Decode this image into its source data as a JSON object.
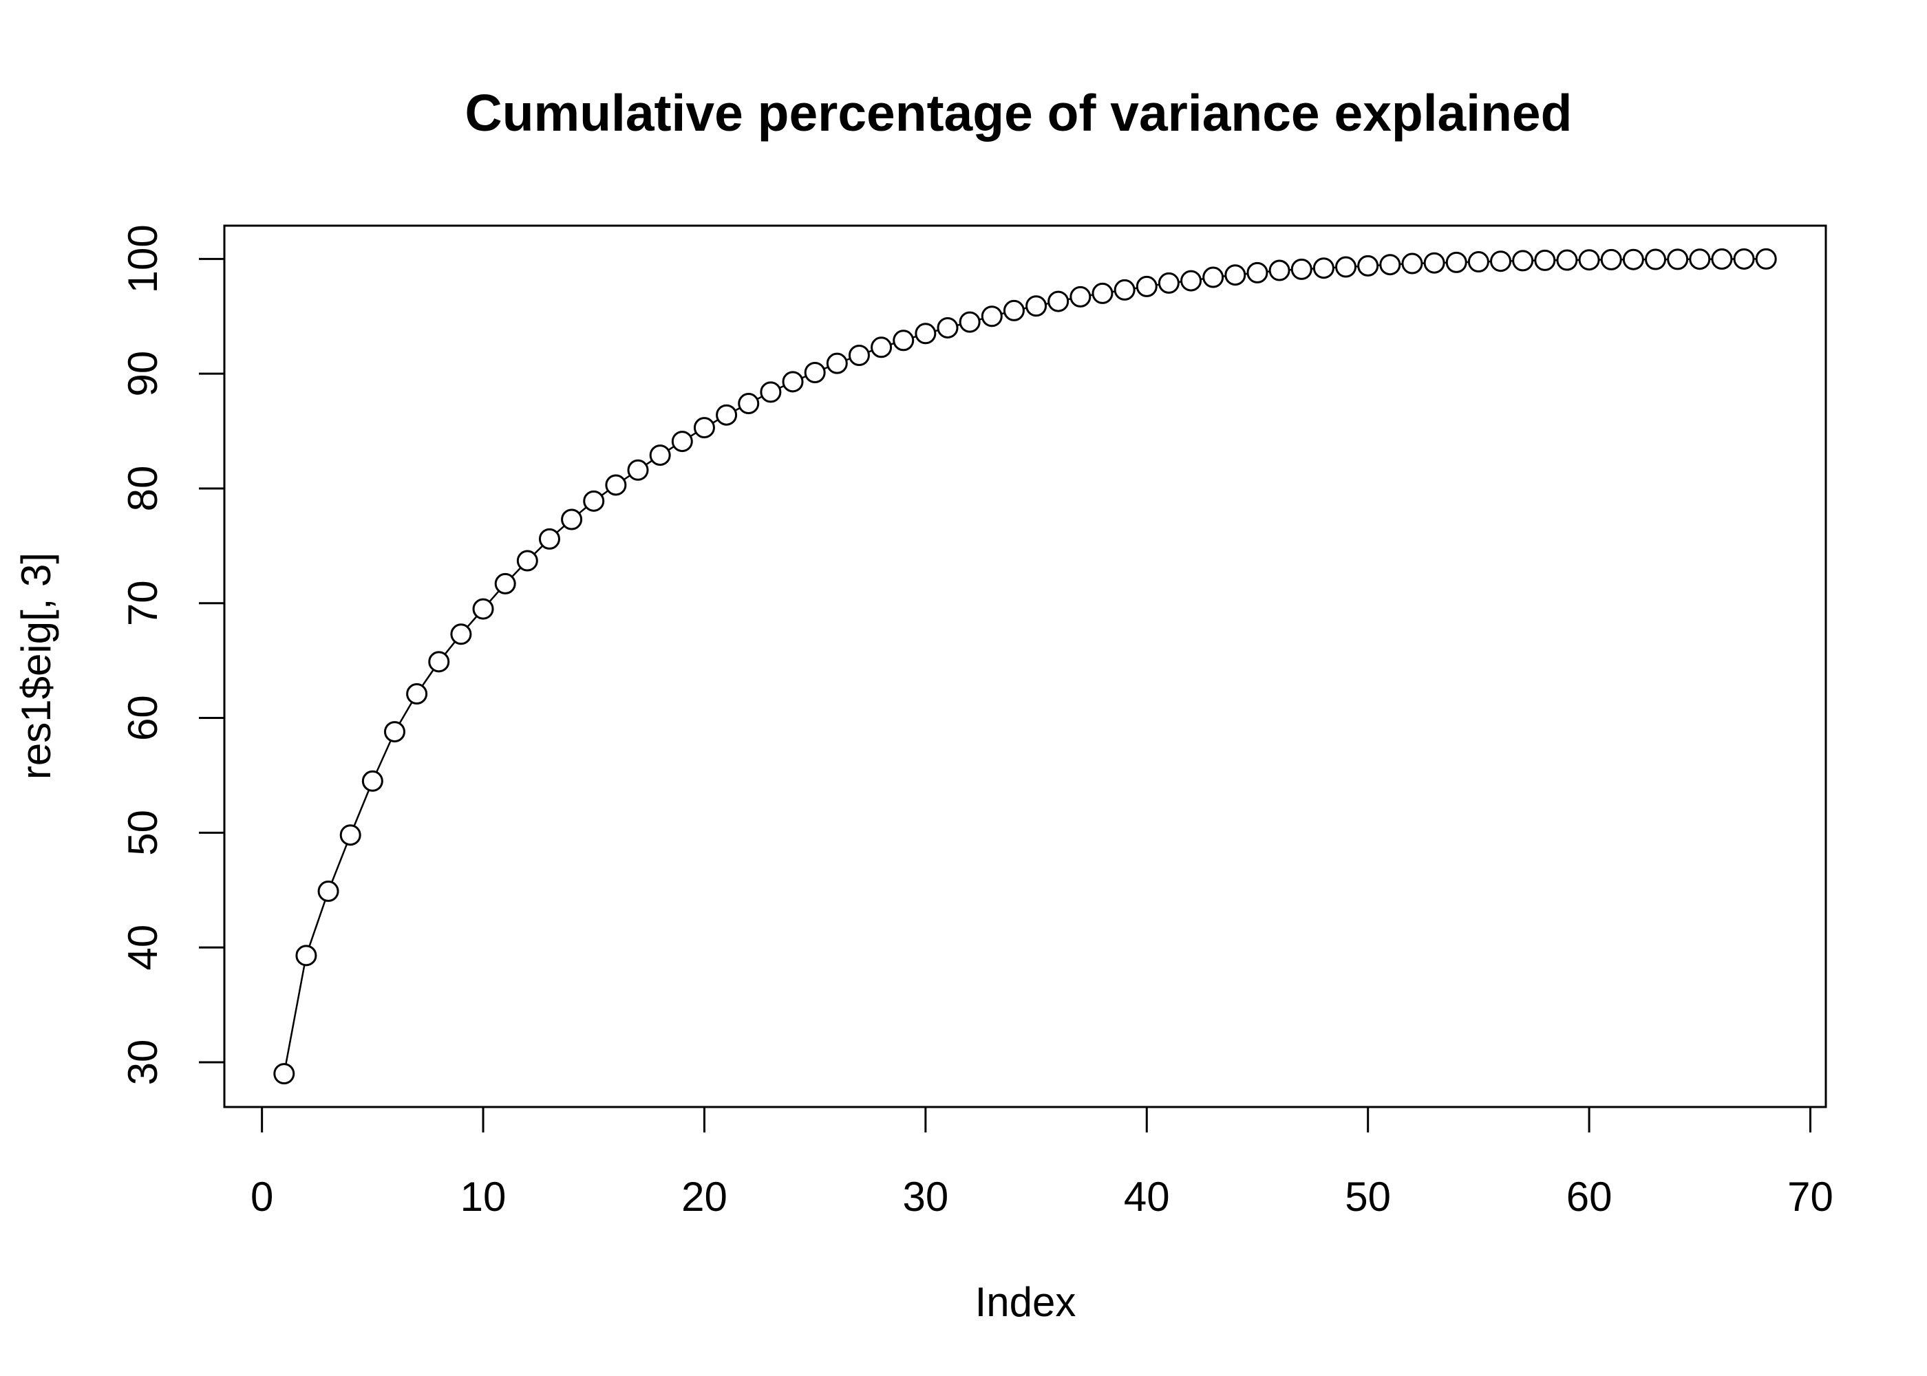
{
  "chart_data": {
    "type": "line",
    "title": "Cumulative percentage of variance explained",
    "xlabel": "Index",
    "ylabel": "res1$eig[, 3]",
    "xlim": [
      -1.7,
      70.7
    ],
    "ylim": [
      26.1,
      102.9
    ],
    "xticks": [
      0,
      10,
      20,
      30,
      40,
      50,
      60,
      70
    ],
    "yticks": [
      30,
      40,
      50,
      60,
      70,
      80,
      90,
      100
    ],
    "marker": "open-circle",
    "grid": false,
    "legend": "none",
    "line_color": "#000000",
    "series": [
      {
        "x": [
          1,
          2,
          3,
          4,
          5,
          6,
          7,
          8,
          9,
          10,
          11,
          12,
          13,
          14,
          15,
          16,
          17,
          18,
          19,
          20,
          21,
          22,
          23,
          24,
          25,
          26,
          27,
          28,
          29,
          30,
          31,
          32,
          33,
          34,
          35,
          36,
          37,
          38,
          39,
          40,
          41,
          42,
          43,
          44,
          45,
          46,
          47,
          48,
          49,
          50,
          51,
          52,
          53,
          54,
          55,
          56,
          57,
          58,
          59,
          60,
          61,
          62,
          63,
          64,
          65,
          66,
          67,
          68
        ],
        "y": [
          29.0,
          39.3,
          44.9,
          49.8,
          54.5,
          58.8,
          62.1,
          64.9,
          67.3,
          69.5,
          71.7,
          73.7,
          75.6,
          77.3,
          78.9,
          80.3,
          81.6,
          82.9,
          84.1,
          85.3,
          86.4,
          87.4,
          88.4,
          89.3,
          90.1,
          90.9,
          91.6,
          92.3,
          92.9,
          93.5,
          94.0,
          94.5,
          95.0,
          95.5,
          95.9,
          96.3,
          96.7,
          97.0,
          97.3,
          97.6,
          97.9,
          98.1,
          98.4,
          98.6,
          98.8,
          99.0,
          99.1,
          99.2,
          99.3,
          99.4,
          99.5,
          99.6,
          99.65,
          99.7,
          99.75,
          99.8,
          99.85,
          99.88,
          99.9,
          99.92,
          99.94,
          99.95,
          99.96,
          99.97,
          99.98,
          99.99,
          99.995,
          100.0
        ]
      }
    ]
  }
}
